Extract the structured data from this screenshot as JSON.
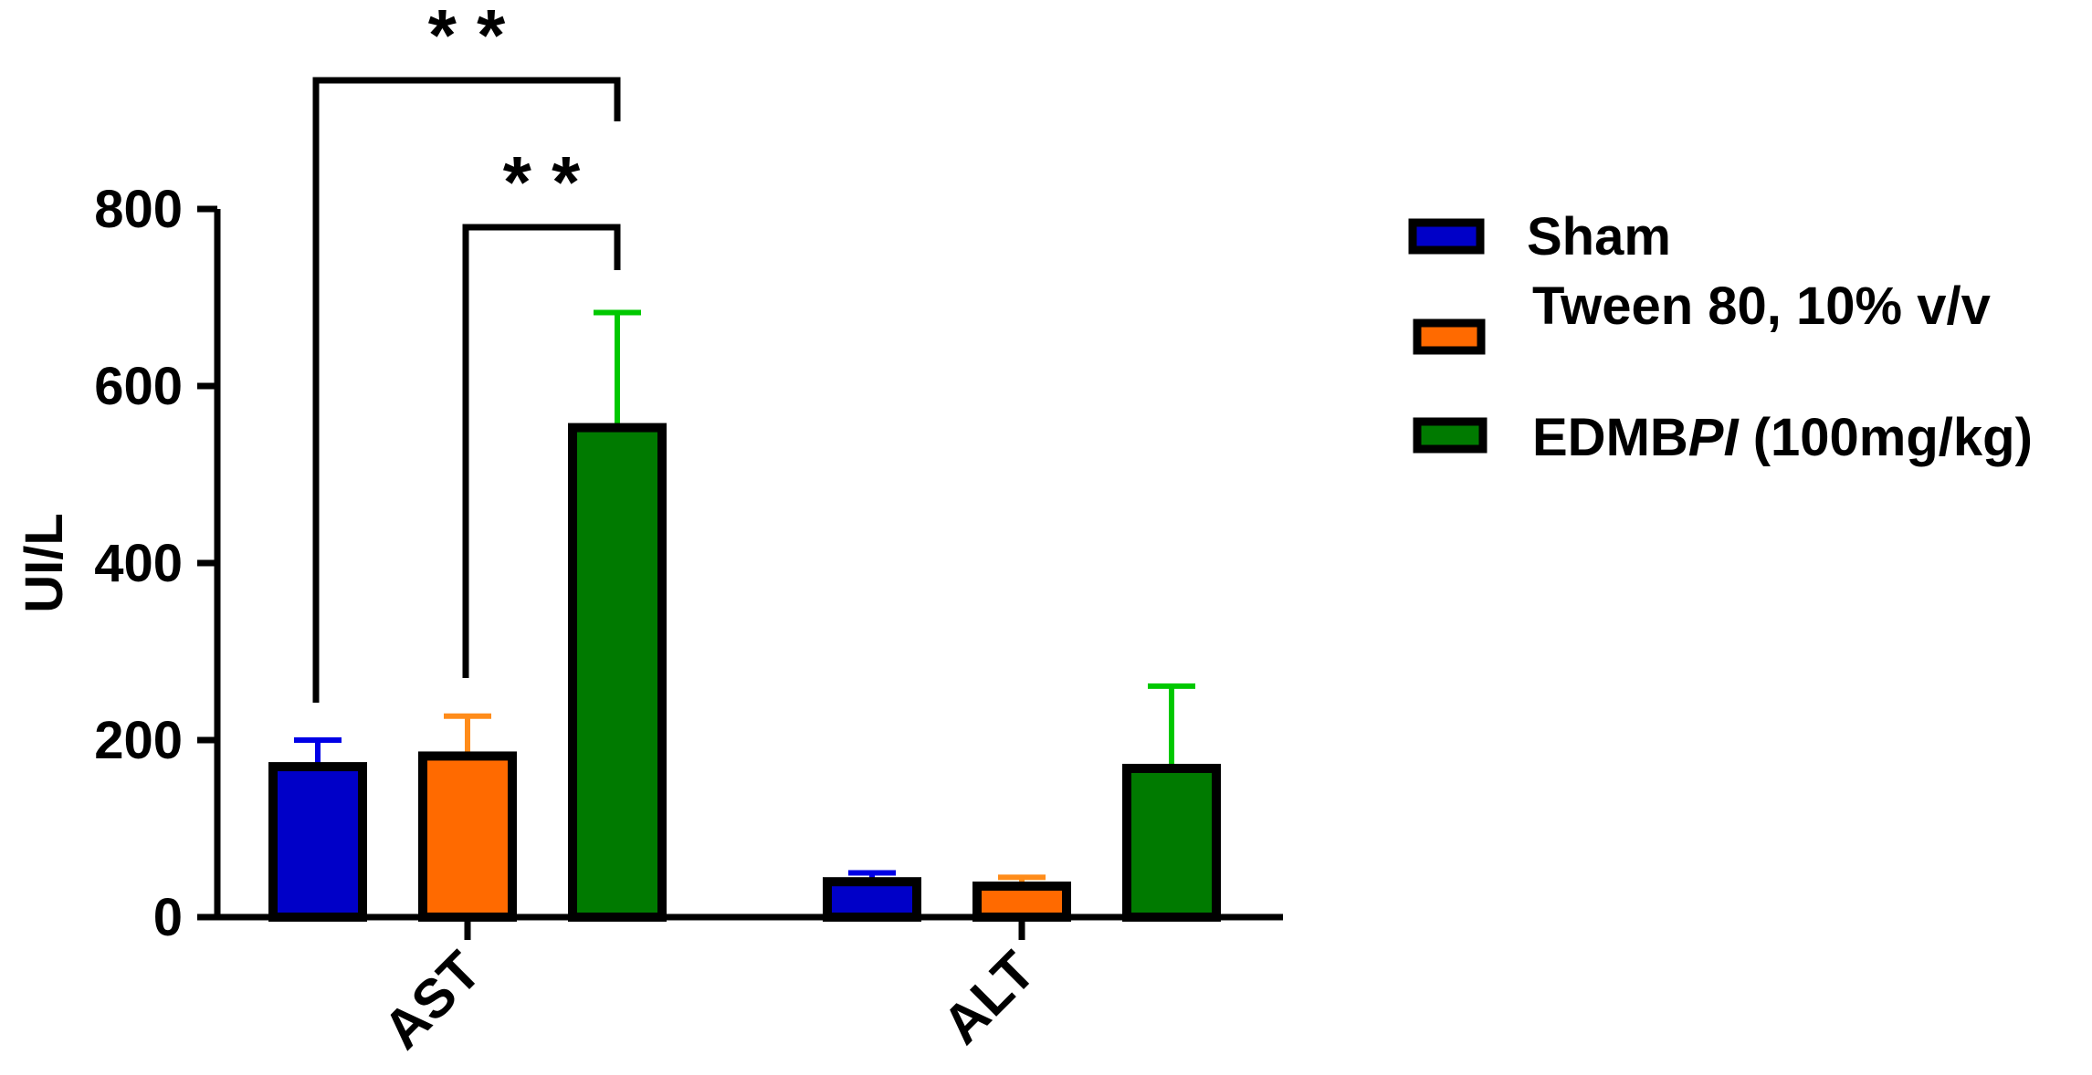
{
  "chart_data": {
    "type": "bar",
    "title": "",
    "xlabel": "",
    "ylabel": "UI/L",
    "ylim": [
      0,
      800
    ],
    "yticks": [
      "0",
      "200",
      "400",
      "600",
      "800"
    ],
    "categories": [
      "AST",
      "ALT"
    ],
    "series": [
      {
        "name": "Sham",
        "color": "#0000c8",
        "error_color": "#0000e6",
        "values": [
          170,
          40
        ],
        "errors": [
          30,
          10
        ]
      },
      {
        "name": "Tween 80, 10% v/v",
        "color": "#ff6a00",
        "error_color": "#ff8c1a",
        "values": [
          182,
          35
        ],
        "errors": [
          45,
          10
        ]
      },
      {
        "name": "EDMBPI (100mg/kg)",
        "color": "#007a00",
        "error_color": "#00c800",
        "values": [
          553,
          168
        ],
        "errors": [
          130,
          93
        ]
      }
    ],
    "legend": {
      "placement": "right",
      "entries": [
        {
          "text": "Sham"
        },
        {
          "text": "Tween 80, 10% v/v"
        },
        {
          "text_prefix": "EDMB",
          "text_italic": "PI",
          "text_suffix": " (100mg/kg)"
        }
      ]
    },
    "significance": [
      {
        "category": "AST",
        "from_series": 0,
        "to_series": 2,
        "label": "**"
      },
      {
        "category": "AST",
        "from_series": 1,
        "to_series": 2,
        "label": "**"
      }
    ],
    "grid": false
  }
}
